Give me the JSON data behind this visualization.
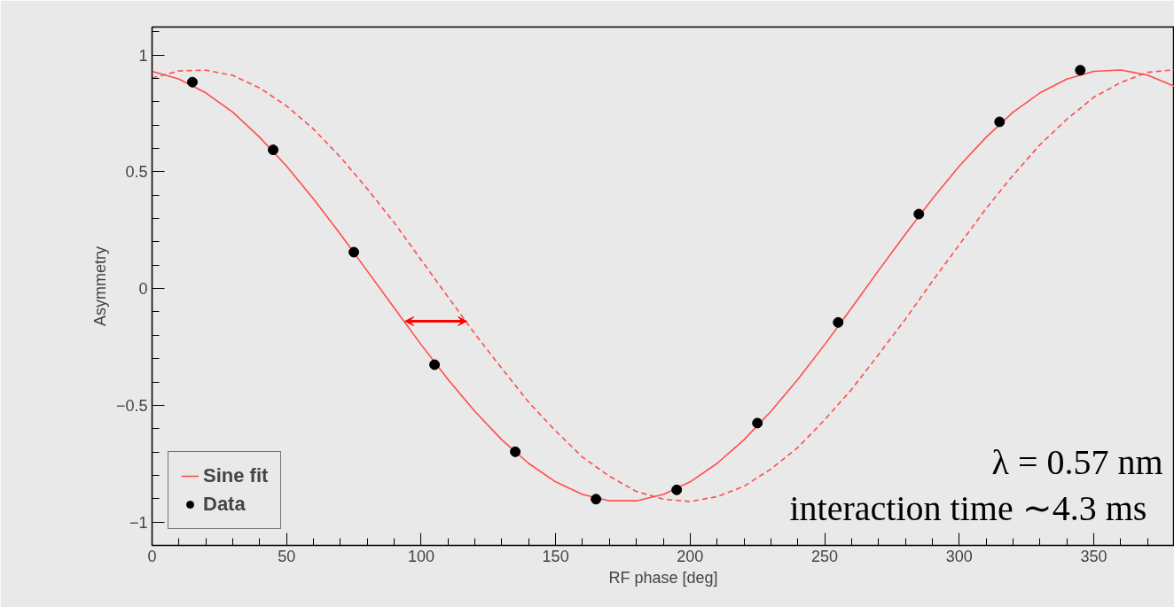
{
  "chart_data": {
    "type": "line",
    "xlabel": "RF phase [deg]",
    "ylabel": "Asymmetry",
    "xlim": [
      0,
      380
    ],
    "xticks": [
      0,
      50,
      100,
      150,
      200,
      250,
      300,
      350
    ],
    "ylim": [
      -1.1,
      1.12
    ],
    "yticks": [
      {
        "value": -1,
        "label": "−1"
      },
      {
        "value": -0.5,
        "label": "−0.5"
      },
      0,
      0.5,
      1
    ],
    "grid": false,
    "legend": "bottom left",
    "series": [
      {
        "name": "Sine fit",
        "color": "#ff4d4d",
        "line_style": "solid",
        "x": [
          0,
          10,
          20,
          30,
          40,
          50,
          60,
          70,
          80,
          90,
          100,
          110,
          120,
          130,
          140,
          150,
          160,
          170,
          180,
          190,
          200,
          210,
          220,
          230,
          240,
          250,
          260,
          270,
          280,
          290,
          300,
          310,
          320,
          330,
          340,
          350,
          360,
          370,
          380
        ],
        "values": [
          0.93,
          0.897,
          0.838,
          0.755,
          0.648,
          0.524,
          0.384,
          0.233,
          0.075,
          -0.083,
          -0.24,
          -0.389,
          -0.526,
          -0.648,
          -0.749,
          -0.828,
          -0.882,
          -0.909,
          -0.909,
          -0.882,
          -0.828,
          -0.749,
          -0.648,
          -0.526,
          -0.389,
          -0.24,
          -0.083,
          0.077,
          0.233,
          0.384,
          0.524,
          0.648,
          0.755,
          0.838,
          0.897,
          0.93,
          0.936,
          0.914,
          0.866
        ]
      },
      {
        "color": "#ff4d4d",
        "line_style": "dashed",
        "x": [
          0,
          10,
          20,
          30,
          40,
          50,
          60,
          70,
          80,
          90,
          100,
          110,
          120,
          130,
          140,
          150,
          160,
          170,
          180,
          190,
          200,
          210,
          220,
          230,
          240,
          250,
          260,
          270,
          280,
          290,
          300,
          310,
          320,
          330,
          340,
          350,
          360,
          370,
          380
        ],
        "values": [
          0.902,
          0.932,
          0.935,
          0.913,
          0.859,
          0.782,
          0.683,
          0.563,
          0.427,
          0.282,
          0.123,
          -0.036,
          -0.194,
          -0.342,
          -0.487,
          -0.61,
          -0.722,
          -0.804,
          -0.869,
          -0.902,
          -0.912,
          -0.891,
          -0.847,
          -0.773,
          -0.681,
          -0.562,
          -0.432,
          -0.283,
          -0.131,
          0.031,
          0.187,
          0.343,
          0.485,
          0.616,
          0.725,
          0.819,
          0.882,
          0.926,
          0.937
        ]
      },
      {
        "name": "Data",
        "type": "scatter",
        "marker": "circle",
        "color": "#000000",
        "x": [
          15,
          45,
          75,
          105,
          135,
          165,
          195,
          225,
          255,
          285,
          315,
          345
        ],
        "values": [
          0.884,
          0.594,
          0.156,
          -0.326,
          -0.699,
          -0.902,
          -0.862,
          -0.576,
          -0.145,
          0.319,
          0.714,
          0.935
        ]
      }
    ],
    "annotations": [
      "λ = 0.57 nm",
      "interaction time ∼4.3 ms"
    ]
  }
}
